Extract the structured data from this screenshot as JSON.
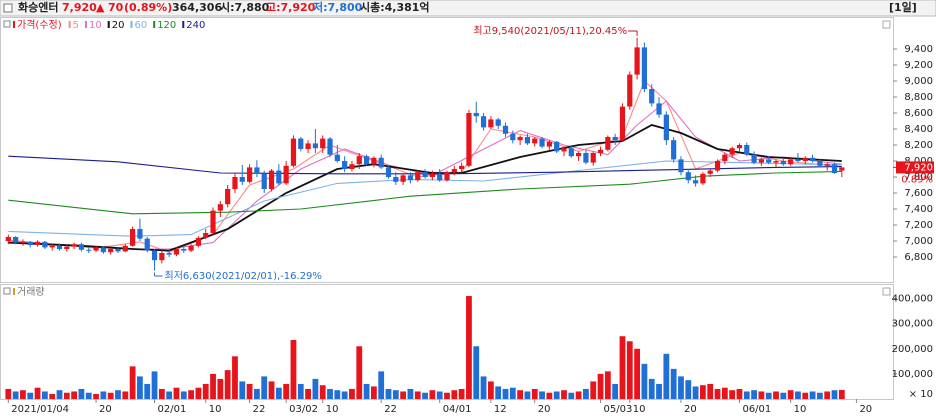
{
  "header": {
    "name": "화승엔터",
    "price": "7,920",
    "arrow": "▲",
    "change": "70",
    "change_pct": "(0.89%)",
    "volume": "364,306",
    "open": "시:7,880",
    "high": "고:7,920",
    "low": "저:7,800",
    "market_cap": "시총:4,381억",
    "period": "[1일]"
  },
  "chart_data": [
    {
      "type": "candlestick",
      "title": "가격(수정)",
      "up_color": "#e8141c",
      "down_color": "#1f6fd6",
      "xlim": [
        -1,
        121
      ],
      "xticks": [
        {
          "value": 0,
          "label": "2021/01/04"
        },
        {
          "value": 12,
          "label": "20"
        },
        {
          "value": 20,
          "label": "02/01"
        },
        {
          "value": 27,
          "label": "10"
        },
        {
          "value": 33,
          "label": "22"
        },
        {
          "value": 38,
          "label": "03/02"
        },
        {
          "value": 43,
          "label": "10"
        },
        {
          "value": 51,
          "label": "22"
        },
        {
          "value": 59,
          "label": "04/01"
        },
        {
          "value": 66,
          "label": "12"
        },
        {
          "value": 72,
          "label": "20"
        },
        {
          "value": 81,
          "label": "05/03"
        },
        {
          "value": 85,
          "label": "10"
        },
        {
          "value": 92,
          "label": "20"
        },
        {
          "value": 100,
          "label": "06/01"
        },
        {
          "value": 107,
          "label": "10"
        },
        {
          "value": 116,
          "label": "20"
        }
      ],
      "ylim": [
        6500,
        9775
      ],
      "yticks": [
        {
          "value": 6800,
          "label": "6,800"
        },
        {
          "value": 7000,
          "label": "7,000"
        },
        {
          "value": 7200,
          "label": "7,200"
        },
        {
          "value": 7400,
          "label": "7,400"
        },
        {
          "value": 7600,
          "label": "7,600"
        },
        {
          "value": 7800,
          "label": "7,800"
        },
        {
          "value": 8000,
          "label": "8,000"
        },
        {
          "value": 8200,
          "label": "8,200"
        },
        {
          "value": 8400,
          "label": "8,400"
        },
        {
          "value": 8600,
          "label": "8,600"
        },
        {
          "value": 8800,
          "label": "8,800"
        },
        {
          "value": 9000,
          "label": "9,000"
        },
        {
          "value": 9200,
          "label": "9,200"
        },
        {
          "value": 9400,
          "label": "9,400"
        }
      ],
      "ohlc": [
        [
          7000,
          7080,
          6960,
          7050
        ],
        [
          7050,
          7060,
          6960,
          6980
        ],
        [
          6980,
          7020,
          6940,
          6990
        ],
        [
          6990,
          7000,
          6920,
          6950
        ],
        [
          6950,
          7010,
          6930,
          6990
        ],
        [
          6990,
          7000,
          6900,
          6920
        ],
        [
          6920,
          6960,
          6880,
          6940
        ],
        [
          6940,
          6970,
          6880,
          6900
        ],
        [
          6900,
          6950,
          6870,
          6930
        ],
        [
          6930,
          6980,
          6900,
          6960
        ],
        [
          6960,
          6980,
          6870,
          6890
        ],
        [
          6890,
          6920,
          6850,
          6880
        ],
        [
          6880,
          6940,
          6860,
          6920
        ],
        [
          6920,
          6930,
          6840,
          6860
        ],
        [
          6860,
          6910,
          6830,
          6900
        ],
        [
          6900,
          6920,
          6850,
          6870
        ],
        [
          6870,
          6960,
          6860,
          6940
        ],
        [
          6940,
          7180,
          6930,
          7150
        ],
        [
          7150,
          7280,
          7000,
          7030
        ],
        [
          7030,
          7050,
          6860,
          6880
        ],
        [
          6880,
          6900,
          6630,
          6760
        ],
        [
          6760,
          6880,
          6720,
          6850
        ],
        [
          6850,
          6900,
          6800,
          6830
        ],
        [
          6830,
          6920,
          6810,
          6900
        ],
        [
          6900,
          6940,
          6850,
          6880
        ],
        [
          6880,
          6960,
          6860,
          6940
        ],
        [
          6940,
          7060,
          6920,
          7040
        ],
        [
          7040,
          7150,
          7020,
          7100
        ],
        [
          7100,
          7420,
          7080,
          7380
        ],
        [
          7380,
          7500,
          7300,
          7460
        ],
        [
          7460,
          7700,
          7420,
          7650
        ],
        [
          7650,
          7850,
          7600,
          7800
        ],
        [
          7800,
          7950,
          7700,
          7740
        ],
        [
          7740,
          7960,
          7720,
          7920
        ],
        [
          7920,
          8010,
          7800,
          7840
        ],
        [
          7840,
          7880,
          7600,
          7650
        ],
        [
          7650,
          7900,
          7620,
          7880
        ],
        [
          7880,
          7960,
          7700,
          7720
        ],
        [
          7720,
          8000,
          7700,
          7940
        ],
        [
          7940,
          8320,
          7920,
          8280
        ],
        [
          8280,
          8300,
          8120,
          8150
        ],
        [
          8150,
          8260,
          8100,
          8220
        ],
        [
          8220,
          8400,
          8100,
          8160
        ],
        [
          8160,
          8320,
          8100,
          8280
        ],
        [
          8280,
          8300,
          8050,
          8080
        ],
        [
          8080,
          8200,
          7980,
          8000
        ],
        [
          8000,
          8060,
          7860,
          7900
        ],
        [
          7900,
          8000,
          7870,
          7960
        ],
        [
          7960,
          8100,
          7900,
          8060
        ],
        [
          8060,
          8080,
          7940,
          7960
        ],
        [
          7960,
          8060,
          7920,
          8040
        ],
        [
          8040,
          8080,
          7900,
          7920
        ],
        [
          7920,
          7950,
          7780,
          7800
        ],
        [
          7800,
          7860,
          7700,
          7740
        ],
        [
          7740,
          7840,
          7700,
          7820
        ],
        [
          7820,
          7860,
          7720,
          7760
        ],
        [
          7760,
          7880,
          7740,
          7860
        ],
        [
          7860,
          7900,
          7780,
          7800
        ],
        [
          7800,
          7880,
          7760,
          7840
        ],
        [
          7840,
          7900,
          7740,
          7760
        ],
        [
          7760,
          7880,
          7740,
          7860
        ],
        [
          7860,
          7940,
          7820,
          7900
        ],
        [
          7900,
          7980,
          7860,
          7940
        ],
        [
          7940,
          8640,
          7920,
          8600
        ],
        [
          8600,
          8740,
          8480,
          8560
        ],
        [
          8560,
          8600,
          8380,
          8420
        ],
        [
          8420,
          8560,
          8400,
          8520
        ],
        [
          8520,
          8540,
          8400,
          8440
        ],
        [
          8440,
          8480,
          8300,
          8340
        ],
        [
          8340,
          8380,
          8220,
          8260
        ],
        [
          8260,
          8320,
          8200,
          8300
        ],
        [
          8300,
          8340,
          8200,
          8220
        ],
        [
          8220,
          8300,
          8180,
          8280
        ],
        [
          8280,
          8300,
          8160,
          8180
        ],
        [
          8180,
          8260,
          8140,
          8240
        ],
        [
          8240,
          8250,
          8100,
          8120
        ],
        [
          8120,
          8180,
          8060,
          8160
        ],
        [
          8160,
          8200,
          8040,
          8060
        ],
        [
          8060,
          8120,
          8000,
          8100
        ],
        [
          8100,
          8140,
          7960,
          7980
        ],
        [
          7980,
          8120,
          7940,
          8100
        ],
        [
          8100,
          8180,
          8060,
          8140
        ],
        [
          8140,
          8320,
          8120,
          8300
        ],
        [
          8300,
          8340,
          8200,
          8260
        ],
        [
          8260,
          8720,
          8240,
          8680
        ],
        [
          8680,
          9120,
          8640,
          9080
        ],
        [
          9080,
          9540,
          9020,
          9420
        ],
        [
          9420,
          9480,
          8860,
          8900
        ],
        [
          8900,
          8960,
          8680,
          8720
        ],
        [
          8720,
          8800,
          8540,
          8580
        ],
        [
          8580,
          8620,
          8200,
          8260
        ],
        [
          8260,
          8300,
          7980,
          8020
        ],
        [
          8020,
          8060,
          7820,
          7860
        ],
        [
          7860,
          7900,
          7720,
          7760
        ],
        [
          7760,
          7820,
          7680,
          7720
        ],
        [
          7720,
          7860,
          7700,
          7840
        ],
        [
          7840,
          7900,
          7800,
          7880
        ],
        [
          7880,
          8020,
          7860,
          8000
        ],
        [
          8000,
          8100,
          7960,
          8080
        ],
        [
          8080,
          8180,
          8040,
          8160
        ],
        [
          8160,
          8220,
          8120,
          8200
        ],
        [
          8200,
          8230,
          8060,
          8080
        ],
        [
          8080,
          8120,
          7960,
          7980
        ],
        [
          7980,
          8040,
          7940,
          8020
        ],
        [
          8020,
          8060,
          7960,
          7980
        ],
        [
          7980,
          8020,
          7920,
          8000
        ],
        [
          8000,
          8040,
          7940,
          7960
        ],
        [
          7960,
          8040,
          7940,
          8020
        ],
        [
          8020,
          8100,
          7980,
          8000
        ],
        [
          8000,
          8060,
          7960,
          8040
        ],
        [
          8040,
          8080,
          7980,
          8000
        ],
        [
          8000,
          8020,
          7920,
          7940
        ],
        [
          7940,
          7980,
          7880,
          7960
        ],
        [
          7960,
          7980,
          7840,
          7850
        ],
        [
          7880,
          7920,
          7800,
          7920
        ]
      ],
      "series": [
        {
          "name": "5",
          "color": "#ff8a8a",
          "x": [
            0,
            6,
            12,
            18,
            22,
            28,
            33,
            39,
            44,
            50,
            56,
            62,
            66,
            72,
            78,
            84,
            87,
            90,
            94,
            100,
            106,
            114
          ],
          "values": [
            7010,
            6960,
            6910,
            6990,
            6860,
            7080,
            7700,
            7900,
            8200,
            8000,
            7800,
            7860,
            8400,
            8300,
            8120,
            8300,
            9000,
            8750,
            7900,
            8100,
            8000,
            7930
          ]
        },
        {
          "name": "10",
          "color": "#e070c8",
          "x": [
            0,
            8,
            16,
            22,
            28,
            34,
            40,
            46,
            52,
            58,
            64,
            70,
            76,
            82,
            86,
            90,
            94,
            100,
            106,
            114
          ],
          "values": [
            7000,
            6950,
            6900,
            6900,
            6980,
            7500,
            7900,
            8150,
            7950,
            7820,
            8100,
            8380,
            8200,
            8080,
            8450,
            8750,
            8300,
            8000,
            8050,
            7960
          ]
        },
        {
          "name": "20",
          "color": "#111111",
          "x": [
            0,
            10,
            17,
            22,
            30,
            38,
            45,
            50,
            58,
            62,
            70,
            78,
            84,
            88,
            92,
            97,
            104,
            114
          ],
          "values": [
            6980,
            6940,
            6900,
            6880,
            7150,
            7600,
            7900,
            7960,
            7850,
            7850,
            8050,
            8200,
            8250,
            8450,
            8350,
            8150,
            8050,
            8000
          ]
        },
        {
          "name": "60",
          "color": "#7fb2e5",
          "x": [
            0,
            17,
            25,
            35,
            45,
            55,
            65,
            80,
            90,
            100,
            114
          ],
          "values": [
            7120,
            7060,
            7080,
            7500,
            7720,
            7770,
            7750,
            7900,
            8000,
            7980,
            7950
          ]
        },
        {
          "name": "120",
          "color": "#1f8a1f",
          "x": [
            0,
            17,
            30,
            40,
            55,
            70,
            85,
            95,
            105,
            114
          ],
          "values": [
            7510,
            7340,
            7360,
            7400,
            7560,
            7650,
            7710,
            7810,
            7850,
            7870
          ]
        },
        {
          "name": "240",
          "color": "#1c1c8c",
          "x": [
            0,
            15,
            29,
            45,
            60,
            75,
            90,
            105,
            114
          ],
          "values": [
            8060,
            7990,
            7850,
            7840,
            7840,
            7860,
            7890,
            7920,
            7930
          ]
        }
      ],
      "last_label": "7,920",
      "last_pct": "0.89%",
      "annotations": {
        "high": "최고9,540(2021/05/11),20.45%",
        "low": "최저6,630(2021/02/01),-16.29%"
      }
    },
    {
      "type": "bar",
      "title": "거래량",
      "unit_label": "× 10",
      "ylim": [
        0,
        450000
      ],
      "yticks": [
        {
          "value": 100000,
          "label": "100,000"
        },
        {
          "value": 200000,
          "label": "200,000"
        },
        {
          "value": 300000,
          "label": "300,000"
        },
        {
          "value": 400000,
          "label": "400,000"
        }
      ],
      "values": [
        40000,
        30000,
        35000,
        25000,
        45000,
        30000,
        20000,
        35000,
        25000,
        30000,
        40000,
        25000,
        20000,
        30000,
        25000,
        35000,
        30000,
        130000,
        90000,
        60000,
        110000,
        40000,
        30000,
        45000,
        30000,
        35000,
        45000,
        60000,
        100000,
        80000,
        115000,
        170000,
        70000,
        60000,
        40000,
        90000,
        70000,
        45000,
        60000,
        235000,
        60000,
        40000,
        80000,
        55000,
        40000,
        35000,
        30000,
        40000,
        210000,
        60000,
        50000,
        110000,
        40000,
        35000,
        30000,
        40000,
        30000,
        25000,
        35000,
        30000,
        25000,
        35000,
        40000,
        410000,
        210000,
        90000,
        70000,
        50000,
        40000,
        45000,
        35000,
        30000,
        40000,
        30000,
        25000,
        30000,
        35000,
        25000,
        30000,
        40000,
        70000,
        100000,
        110000,
        60000,
        250000,
        230000,
        200000,
        140000,
        80000,
        60000,
        180000,
        120000,
        90000,
        75000,
        50000,
        55000,
        60000,
        40000,
        45000,
        35000,
        40000,
        30000,
        35000,
        30000,
        25000,
        30000,
        25000,
        35000,
        30000,
        25000,
        30000,
        25000,
        30000,
        35000,
        36000
      ]
    }
  ]
}
